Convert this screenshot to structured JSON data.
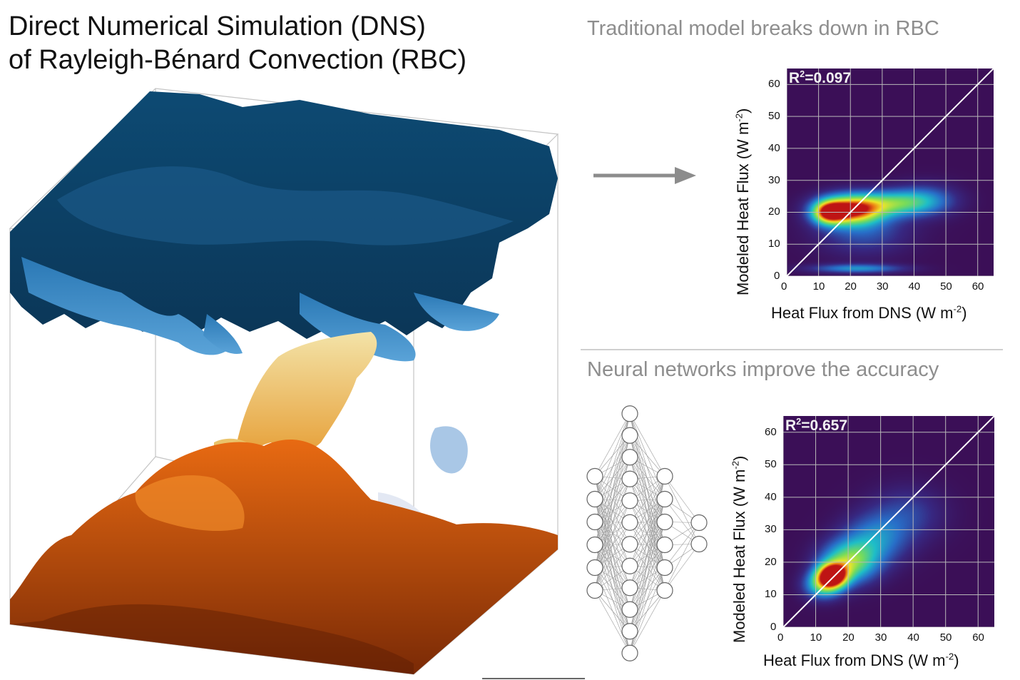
{
  "title": {
    "line1": "Direct Numerical Simulation (DNS)",
    "line2": "of Rayleigh-Bénard Convection (RBC)"
  },
  "top_panel": {
    "heading": "Traditional model breaks down in RBC",
    "r2_label": "R",
    "r2_value": "=0.097"
  },
  "bottom_panel": {
    "heading": "Neural networks improve the accuracy",
    "r2_label": "R",
    "r2_value": "=0.657"
  },
  "axes": {
    "xlabel_main": "Heat Flux from DNS (W m",
    "xlabel_end": ")",
    "ylabel_main": "Modeled Heat Flux   (W m",
    "ylabel_end": ")",
    "exponent": "-2",
    "r2_exponent": "2"
  },
  "colors": {
    "plot_background": "#3b0f57",
    "grid": "#b8b8b8",
    "one_to_one_line": "#ffffff",
    "cold_fluid": "#1a5a88",
    "hot_fluid": "#c44a0f",
    "arrow": "#8c8c8c"
  },
  "chart_data": [
    {
      "type": "heatmap",
      "title": "",
      "annotation": "R²=0.097",
      "xlabel": "Heat Flux from DNS (W m-2)",
      "ylabel": "Modeled Heat Flux (W m-2)",
      "xlim": [
        0,
        65
      ],
      "ylim": [
        0,
        65
      ],
      "xticks": [
        0,
        10,
        20,
        30,
        40,
        50,
        60
      ],
      "yticks": [
        0,
        10,
        20,
        30,
        40,
        50,
        60
      ],
      "grid": true,
      "reference_line": "y = x",
      "density_blobs": [
        {
          "x": 20,
          "y": 21,
          "sx": 7,
          "sy": 3.2,
          "peak": 0.95
        },
        {
          "x": 13,
          "y": 20,
          "sx": 3.5,
          "sy": 2.5,
          "peak": 0.7
        },
        {
          "x": 34,
          "y": 23,
          "sx": 8,
          "sy": 2.8,
          "peak": 0.45
        },
        {
          "x": 44,
          "y": 24,
          "sx": 7,
          "sy": 3.5,
          "peak": 0.25
        },
        {
          "x": 24,
          "y": 14,
          "sx": 10,
          "sy": 5,
          "peak": 0.22
        },
        {
          "x": 22,
          "y": 2.5,
          "sx": 10,
          "sy": 1.0,
          "peak": 0.35
        }
      ]
    },
    {
      "type": "heatmap",
      "title": "",
      "annotation": "R²=0.657",
      "xlabel": "Heat Flux from DNS (W m-2)",
      "ylabel": "Modeled Heat Flux (W m-2)",
      "xlim": [
        0,
        65
      ],
      "ylim": [
        0,
        65
      ],
      "xticks": [
        0,
        10,
        20,
        30,
        40,
        50,
        60
      ],
      "yticks": [
        0,
        10,
        20,
        30,
        40,
        50,
        60
      ],
      "grid": true,
      "reference_line": "y = x",
      "density_blobs": [
        {
          "x": 15,
          "y": 16,
          "sx": 3.2,
          "sy": 2.6,
          "peak": 1.0
        },
        {
          "x": 20,
          "y": 20,
          "sx": 6,
          "sy": 4.5,
          "peak": 0.6
        },
        {
          "x": 28,
          "y": 27,
          "sx": 7,
          "sy": 5.5,
          "peak": 0.32
        },
        {
          "x": 38,
          "y": 35,
          "sx": 8,
          "sy": 6,
          "peak": 0.18
        },
        {
          "x": 12,
          "y": 13,
          "sx": 4,
          "sy": 3,
          "peak": 0.5
        }
      ]
    }
  ],
  "network": {
    "layers": [
      6,
      12,
      6,
      2
    ]
  }
}
